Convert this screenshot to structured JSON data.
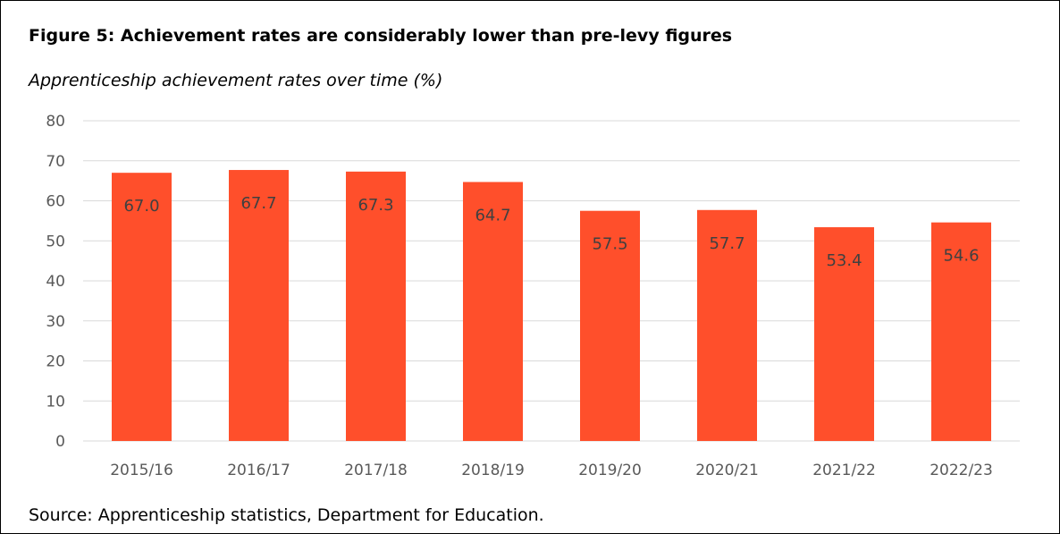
{
  "figure": {
    "title": "Figure 5: Achievement rates are considerably lower than pre-levy figures",
    "subtitle": "Apprenticeship achievement rates over time (%)",
    "source": "Source: Apprenticeship statistics, Department for Education."
  },
  "chart_data": {
    "type": "bar",
    "title": "Figure 5: Achievement rates are considerably lower than pre-levy figures",
    "subtitle": "Apprenticeship achievement rates over time (%)",
    "xlabel": "",
    "ylabel": "",
    "categories": [
      "2015/16",
      "2016/17",
      "2017/18",
      "2018/19",
      "2019/20",
      "2020/21",
      "2021/22",
      "2022/23"
    ],
    "values": [
      67.0,
      67.7,
      67.3,
      64.7,
      57.5,
      57.7,
      53.4,
      54.6
    ],
    "data_labels": [
      "67.0",
      "67.7",
      "67.3",
      "64.7",
      "57.5",
      "57.7",
      "53.4",
      "54.6"
    ],
    "ylim": [
      0,
      80
    ],
    "yticks": [
      0,
      10,
      20,
      30,
      40,
      50,
      60,
      70,
      80
    ],
    "grid": true,
    "legend": "none",
    "colors": {
      "bar": "#ff4f2b",
      "grid": "#d9d9d9",
      "tick_label": "#595959",
      "data_label": "#404040"
    }
  }
}
